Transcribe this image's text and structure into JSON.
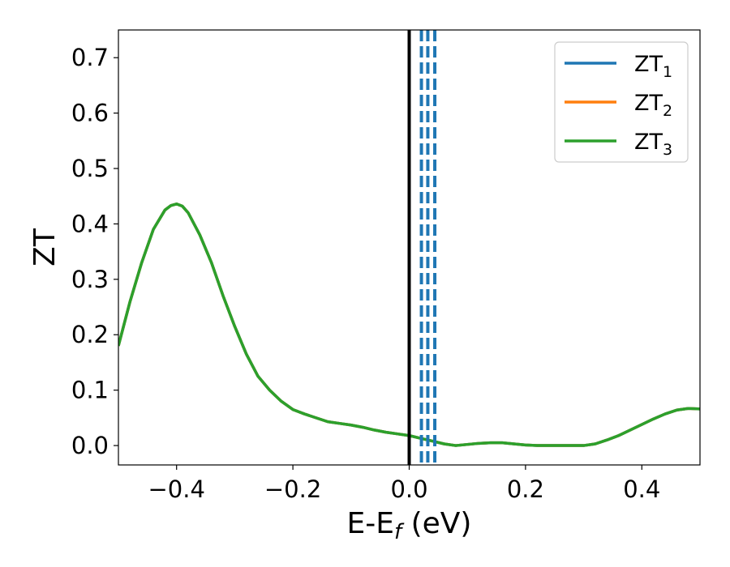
{
  "chart_data": {
    "type": "line",
    "xlabel": "E-E",
    "xlabel_sub": "f",
    "xlabel_unit": " (eV)",
    "ylabel": "ZT",
    "xlim": [
      -0.5,
      0.5
    ],
    "ylim": [
      -0.035,
      0.75
    ],
    "xticks": [
      -0.4,
      -0.2,
      0.0,
      0.2,
      0.4
    ],
    "xtick_labels": [
      "−0.4",
      "−0.2",
      "0.0",
      "0.2",
      "0.4"
    ],
    "yticks": [
      0.0,
      0.1,
      0.2,
      0.3,
      0.4,
      0.5,
      0.6,
      0.7
    ],
    "ytick_labels": [
      "0.0",
      "0.1",
      "0.2",
      "0.3",
      "0.4",
      "0.5",
      "0.6",
      "0.7"
    ],
    "grid": false,
    "legend_position": "top-right",
    "x": [
      -0.5,
      -0.48,
      -0.46,
      -0.44,
      -0.42,
      -0.41,
      -0.4,
      -0.39,
      -0.38,
      -0.36,
      -0.34,
      -0.32,
      -0.3,
      -0.28,
      -0.26,
      -0.24,
      -0.22,
      -0.2,
      -0.18,
      -0.16,
      -0.14,
      -0.12,
      -0.1,
      -0.08,
      -0.06,
      -0.04,
      -0.02,
      0.0,
      0.02,
      0.04,
      0.06,
      0.08,
      0.1,
      0.12,
      0.14,
      0.16,
      0.18,
      0.2,
      0.22,
      0.24,
      0.26,
      0.28,
      0.3,
      0.32,
      0.34,
      0.36,
      0.38,
      0.4,
      0.42,
      0.44,
      0.46,
      0.48,
      0.5
    ],
    "series": [
      {
        "name": "ZT",
        "name_sub": "1",
        "color": "#1f77b4",
        "values": [
          0.18,
          0.26,
          0.33,
          0.39,
          0.425,
          0.433,
          0.436,
          0.432,
          0.42,
          0.38,
          0.33,
          0.27,
          0.215,
          0.165,
          0.125,
          0.1,
          0.08,
          0.065,
          0.057,
          0.05,
          0.043,
          0.04,
          0.037,
          0.033,
          0.028,
          0.024,
          0.021,
          0.018,
          0.013,
          0.008,
          0.003,
          0.0,
          0.002,
          0.004,
          0.005,
          0.005,
          0.003,
          0.001,
          0.0,
          0.0,
          0.0,
          0.0,
          0.0,
          0.003,
          0.01,
          0.018,
          0.028,
          0.038,
          0.048,
          0.057,
          0.064,
          0.067,
          0.066
        ]
      },
      {
        "name": "ZT",
        "name_sub": "2",
        "color": "#ff7f0e",
        "values": [
          0.18,
          0.26,
          0.33,
          0.39,
          0.425,
          0.433,
          0.436,
          0.432,
          0.42,
          0.38,
          0.33,
          0.27,
          0.215,
          0.165,
          0.125,
          0.1,
          0.08,
          0.065,
          0.057,
          0.05,
          0.043,
          0.04,
          0.037,
          0.033,
          0.028,
          0.024,
          0.021,
          0.018,
          0.013,
          0.008,
          0.003,
          0.0,
          0.002,
          0.004,
          0.005,
          0.005,
          0.003,
          0.001,
          0.0,
          0.0,
          0.0,
          0.0,
          0.0,
          0.003,
          0.01,
          0.018,
          0.028,
          0.038,
          0.048,
          0.057,
          0.064,
          0.067,
          0.066
        ]
      },
      {
        "name": "ZT",
        "name_sub": "3",
        "color": "#2ca02c",
        "values": [
          0.18,
          0.26,
          0.33,
          0.39,
          0.425,
          0.433,
          0.436,
          0.432,
          0.42,
          0.38,
          0.33,
          0.27,
          0.215,
          0.165,
          0.125,
          0.1,
          0.08,
          0.065,
          0.057,
          0.05,
          0.043,
          0.04,
          0.037,
          0.033,
          0.028,
          0.024,
          0.021,
          0.018,
          0.013,
          0.008,
          0.003,
          0.0,
          0.002,
          0.004,
          0.005,
          0.005,
          0.003,
          0.001,
          0.0,
          0.0,
          0.0,
          0.0,
          0.0,
          0.003,
          0.01,
          0.018,
          0.028,
          0.038,
          0.048,
          0.057,
          0.064,
          0.067,
          0.066
        ]
      }
    ],
    "vlines": [
      {
        "x": 0.0,
        "color": "#000000",
        "style": "solid"
      },
      {
        "x": 0.021,
        "color": "#1f77b4",
        "style": "dashed"
      },
      {
        "x": 0.032,
        "color": "#1f77b4",
        "style": "dashed"
      },
      {
        "x": 0.044,
        "color": "#1f77b4",
        "style": "dashed"
      }
    ]
  }
}
